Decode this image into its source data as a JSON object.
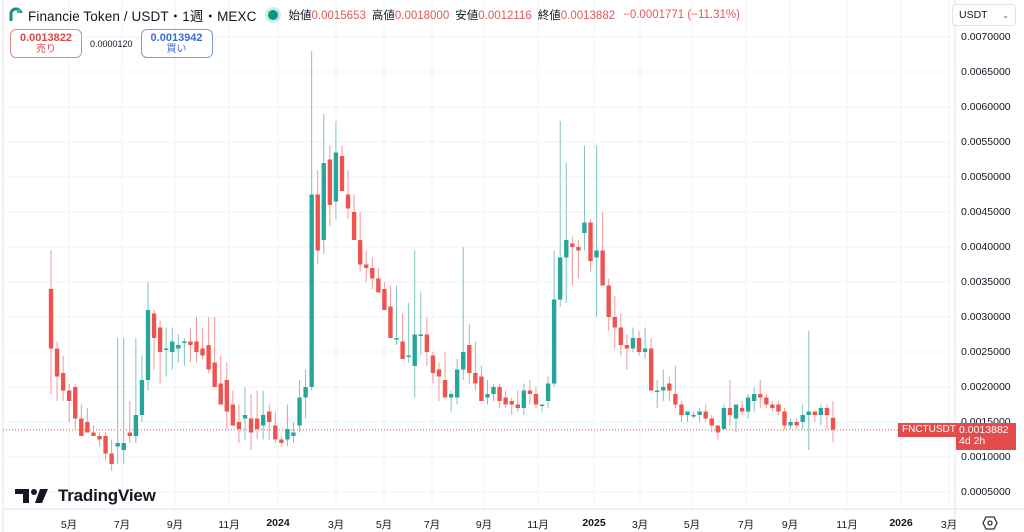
{
  "header": {
    "title": "Financie Token / USDT・1週・MEXC",
    "ohlc": [
      {
        "label": "始値",
        "value": "0.0015653"
      },
      {
        "label": "高値",
        "value": "0.0018000"
      },
      {
        "label": "安値",
        "value": "0.0012116"
      },
      {
        "label": "終値",
        "value": "0.0013882"
      }
    ],
    "change": "−0.0001771 (−11.31%)"
  },
  "trade": {
    "sell_price": "0.0013822",
    "sell_label": "売り",
    "spread": "0.0000120",
    "buy_price": "0.0013942",
    "buy_label": "買い"
  },
  "currency_select": {
    "value": "USDT",
    "icon": "chevron-down-icon"
  },
  "price_tag": {
    "symbol": "FNCTUSDT",
    "price": "0.0013882",
    "countdown": "4d 2h"
  },
  "branding": {
    "name": "TradingView"
  },
  "colors": {
    "up": "#26a69a",
    "down": "#ef5350",
    "grid": "#f0f3fa",
    "price_line": "#e24c4c"
  },
  "chart_data": {
    "type": "candlestick",
    "title": "Financie Token / USDT・1週・MEXC",
    "interval": "1W",
    "ylabel": "USDT",
    "ylim": [
      0.0,
      0.0072
    ],
    "y_ticks": [
      "0.0070000",
      "0.0065000",
      "0.0060000",
      "0.0055000",
      "0.0050000",
      "0.0045000",
      "0.0040000",
      "0.0035000",
      "0.0030000",
      "0.0025000",
      "0.0020000",
      "0.0015000",
      "0.0010000",
      "0.0005000"
    ],
    "x_ticks": [
      "5月",
      "7月",
      "9月",
      "11月",
      "2024",
      "3月",
      "5月",
      "7月",
      "9月",
      "11月",
      "2025",
      "3月",
      "5月",
      "7月",
      "9月",
      "11月",
      "2026",
      "3月"
    ],
    "grid": true,
    "last_price": 0.0013882,
    "candles": [
      [
        0.0034,
        0.00395,
        0.0019,
        0.00255
      ],
      [
        0.00255,
        0.00265,
        0.0018,
        0.00215
      ],
      [
        0.0022,
        0.00245,
        0.0018,
        0.00195
      ],
      [
        0.00195,
        0.00205,
        0.0015,
        0.0018
      ],
      [
        0.002,
        0.00205,
        0.0014,
        0.00155
      ],
      [
        0.00155,
        0.00175,
        0.0013,
        0.0013
      ],
      [
        0.0015,
        0.0017,
        0.00135,
        0.00135
      ],
      [
        0.00135,
        0.00145,
        0.0013,
        0.0013
      ],
      [
        0.0013,
        0.00135,
        0.00115,
        0.00125
      ],
      [
        0.0013,
        0.00135,
        0.00095,
        0.00105
      ],
      [
        0.00105,
        0.00125,
        0.0008,
        0.0009
      ],
      [
        0.00115,
        0.0027,
        0.0009,
        0.0012
      ],
      [
        0.0011,
        0.0027,
        0.0009,
        0.0012
      ],
      [
        0.00135,
        0.0018,
        0.0012,
        0.0013
      ],
      [
        0.0013,
        0.0027,
        0.0012,
        0.0016
      ],
      [
        0.0016,
        0.00245,
        0.0015,
        0.0021
      ],
      [
        0.0021,
        0.0035,
        0.00195,
        0.0031
      ],
      [
        0.00305,
        0.0031,
        0.00225,
        0.0027
      ],
      [
        0.00285,
        0.00295,
        0.00205,
        0.0025
      ],
      [
        0.00255,
        0.00285,
        0.00215,
        0.00255
      ],
      [
        0.0025,
        0.00285,
        0.00225,
        0.00265
      ],
      [
        0.00255,
        0.00275,
        0.00235,
        0.0026
      ],
      [
        0.00265,
        0.0027,
        0.0023,
        0.00265
      ],
      [
        0.00265,
        0.00285,
        0.00235,
        0.0026
      ],
      [
        0.00265,
        0.003,
        0.00235,
        0.0025
      ],
      [
        0.00255,
        0.00285,
        0.0024,
        0.00245
      ],
      [
        0.0026,
        0.003,
        0.0022,
        0.00225
      ],
      [
        0.00235,
        0.003,
        0.002,
        0.002
      ],
      [
        0.00205,
        0.00245,
        0.0018,
        0.00175
      ],
      [
        0.0021,
        0.00235,
        0.0014,
        0.00165
      ],
      [
        0.00175,
        0.00195,
        0.0015,
        0.00145
      ],
      [
        0.0015,
        0.00175,
        0.0012,
        0.0014
      ],
      [
        0.00155,
        0.002,
        0.00125,
        0.0016
      ],
      [
        0.00155,
        0.0019,
        0.0011,
        0.00135
      ],
      [
        0.00155,
        0.00195,
        0.00125,
        0.0014
      ],
      [
        0.00145,
        0.00195,
        0.00125,
        0.0016
      ],
      [
        0.00165,
        0.00175,
        0.00125,
        0.0015
      ],
      [
        0.00145,
        0.00165,
        0.0012,
        0.00125
      ],
      [
        0.00125,
        0.0013,
        0.00115,
        0.0012
      ],
      [
        0.00125,
        0.00175,
        0.00115,
        0.0014
      ],
      [
        0.0013,
        0.0015,
        0.0012,
        0.00135
      ],
      [
        0.00145,
        0.0021,
        0.00135,
        0.00185
      ],
      [
        0.00185,
        0.00225,
        0.00155,
        0.002
      ],
      [
        0.002,
        0.0068,
        0.00195,
        0.00475
      ],
      [
        0.00475,
        0.0051,
        0.00375,
        0.00395
      ],
      [
        0.0041,
        0.0059,
        0.0039,
        0.0052
      ],
      [
        0.00525,
        0.00545,
        0.0043,
        0.0046
      ],
      [
        0.00465,
        0.0058,
        0.0044,
        0.00535
      ],
      [
        0.0053,
        0.00545,
        0.0049,
        0.0048
      ],
      [
        0.00475,
        0.0051,
        0.0044,
        0.00455
      ],
      [
        0.0045,
        0.00475,
        0.0041,
        0.0041
      ],
      [
        0.0041,
        0.0045,
        0.00365,
        0.00375
      ],
      [
        0.00375,
        0.00395,
        0.0035,
        0.0037
      ],
      [
        0.0037,
        0.00385,
        0.0034,
        0.00355
      ],
      [
        0.00355,
        0.0037,
        0.00335,
        0.00335
      ],
      [
        0.0034,
        0.0035,
        0.0032,
        0.0031
      ],
      [
        0.00315,
        0.00345,
        0.0027,
        0.0027
      ],
      [
        0.0027,
        0.00345,
        0.0026,
        0.0027
      ],
      [
        0.00265,
        0.00305,
        0.0024,
        0.0024
      ],
      [
        0.00245,
        0.0032,
        0.00235,
        0.00245
      ],
      [
        0.0023,
        0.00395,
        0.00185,
        0.00275
      ],
      [
        0.00275,
        0.00335,
        0.00245,
        0.00275
      ],
      [
        0.00275,
        0.003,
        0.0023,
        0.0025
      ],
      [
        0.00245,
        0.0025,
        0.00205,
        0.0022
      ],
      [
        0.00225,
        0.00235,
        0.0018,
        0.00215
      ],
      [
        0.0021,
        0.0025,
        0.00185,
        0.00185
      ],
      [
        0.00185,
        0.00195,
        0.00165,
        0.0019
      ],
      [
        0.00185,
        0.0024,
        0.00175,
        0.00225
      ],
      [
        0.00225,
        0.004,
        0.0021,
        0.0025
      ],
      [
        0.0026,
        0.0029,
        0.00205,
        0.0022
      ],
      [
        0.0022,
        0.00265,
        0.00195,
        0.00205
      ],
      [
        0.00215,
        0.0023,
        0.0019,
        0.0018
      ],
      [
        0.00185,
        0.0021,
        0.00175,
        0.0019
      ],
      [
        0.0019,
        0.00205,
        0.0018,
        0.002
      ],
      [
        0.002,
        0.00205,
        0.0017,
        0.0018
      ],
      [
        0.00185,
        0.00195,
        0.0017,
        0.00175
      ],
      [
        0.0018,
        0.00185,
        0.0016,
        0.00175
      ],
      [
        0.00175,
        0.00195,
        0.00165,
        0.0017
      ],
      [
        0.0017,
        0.00205,
        0.0016,
        0.00195
      ],
      [
        0.00195,
        0.0021,
        0.00175,
        0.0019
      ],
      [
        0.0019,
        0.002,
        0.0017,
        0.00175
      ],
      [
        0.00175,
        0.00175,
        0.00165,
        0.00175
      ],
      [
        0.0018,
        0.00215,
        0.0017,
        0.00205
      ],
      [
        0.00205,
        0.00395,
        0.002,
        0.00325
      ],
      [
        0.00325,
        0.0058,
        0.00315,
        0.00385
      ],
      [
        0.00385,
        0.0052,
        0.0032,
        0.0041
      ],
      [
        0.00405,
        0.00415,
        0.00345,
        0.004
      ],
      [
        0.004,
        0.0041,
        0.00355,
        0.00395
      ],
      [
        0.0042,
        0.00545,
        0.00395,
        0.00435
      ],
      [
        0.00435,
        0.0044,
        0.00365,
        0.0038
      ],
      [
        0.00385,
        0.00545,
        0.003,
        0.00395
      ],
      [
        0.00395,
        0.0045,
        0.00345,
        0.00345
      ],
      [
        0.00345,
        0.00355,
        0.0028,
        0.003
      ],
      [
        0.003,
        0.0033,
        0.00255,
        0.00285
      ],
      [
        0.00285,
        0.00305,
        0.00245,
        0.0026
      ],
      [
        0.0026,
        0.00275,
        0.00225,
        0.00255
      ],
      [
        0.00255,
        0.00285,
        0.0025,
        0.0027
      ],
      [
        0.0027,
        0.0028,
        0.00245,
        0.0025
      ],
      [
        0.0025,
        0.00285,
        0.0024,
        0.00255
      ],
      [
        0.00255,
        0.0027,
        0.00205,
        0.00195
      ],
      [
        0.00195,
        0.0021,
        0.0017,
        0.00195
      ],
      [
        0.00195,
        0.00225,
        0.0018,
        0.002
      ],
      [
        0.00205,
        0.00215,
        0.0018,
        0.00195
      ],
      [
        0.0019,
        0.0023,
        0.0017,
        0.00175
      ],
      [
        0.00175,
        0.0018,
        0.0015,
        0.0016
      ],
      [
        0.0016,
        0.00165,
        0.0015,
        0.00165
      ],
      [
        0.0016,
        0.00165,
        0.00155,
        0.0016
      ],
      [
        0.0016,
        0.0017,
        0.0015,
        0.00165
      ],
      [
        0.00165,
        0.00175,
        0.0015,
        0.00155
      ],
      [
        0.00155,
        0.0016,
        0.00135,
        0.00145
      ],
      [
        0.00145,
        0.00145,
        0.00125,
        0.00135
      ],
      [
        0.0014,
        0.00175,
        0.0014,
        0.0017
      ],
      [
        0.0017,
        0.0021,
        0.00145,
        0.0016
      ],
      [
        0.00155,
        0.00175,
        0.00135,
        0.00175
      ],
      [
        0.0017,
        0.0018,
        0.0016,
        0.00165
      ],
      [
        0.00165,
        0.0019,
        0.00155,
        0.00185
      ],
      [
        0.0018,
        0.002,
        0.00165,
        0.0019
      ],
      [
        0.0019,
        0.0021,
        0.0017,
        0.00185
      ],
      [
        0.00185,
        0.0019,
        0.0017,
        0.00175
      ],
      [
        0.00175,
        0.0018,
        0.00165,
        0.0017
      ],
      [
        0.00175,
        0.0018,
        0.0016,
        0.00165
      ],
      [
        0.00165,
        0.0017,
        0.0014,
        0.00145
      ],
      [
        0.00145,
        0.00155,
        0.0014,
        0.0015
      ],
      [
        0.0015,
        0.00155,
        0.0014,
        0.00145
      ],
      [
        0.0015,
        0.00175,
        0.0014,
        0.0016
      ],
      [
        0.0016,
        0.0028,
        0.0011,
        0.00165
      ],
      [
        0.00165,
        0.00165,
        0.0015,
        0.0016
      ],
      [
        0.0016,
        0.00175,
        0.00145,
        0.0017
      ],
      [
        0.0017,
        0.00175,
        0.0014,
        0.0016
      ],
      [
        0.00156,
        0.0018,
        0.00121,
        0.00139
      ]
    ]
  }
}
